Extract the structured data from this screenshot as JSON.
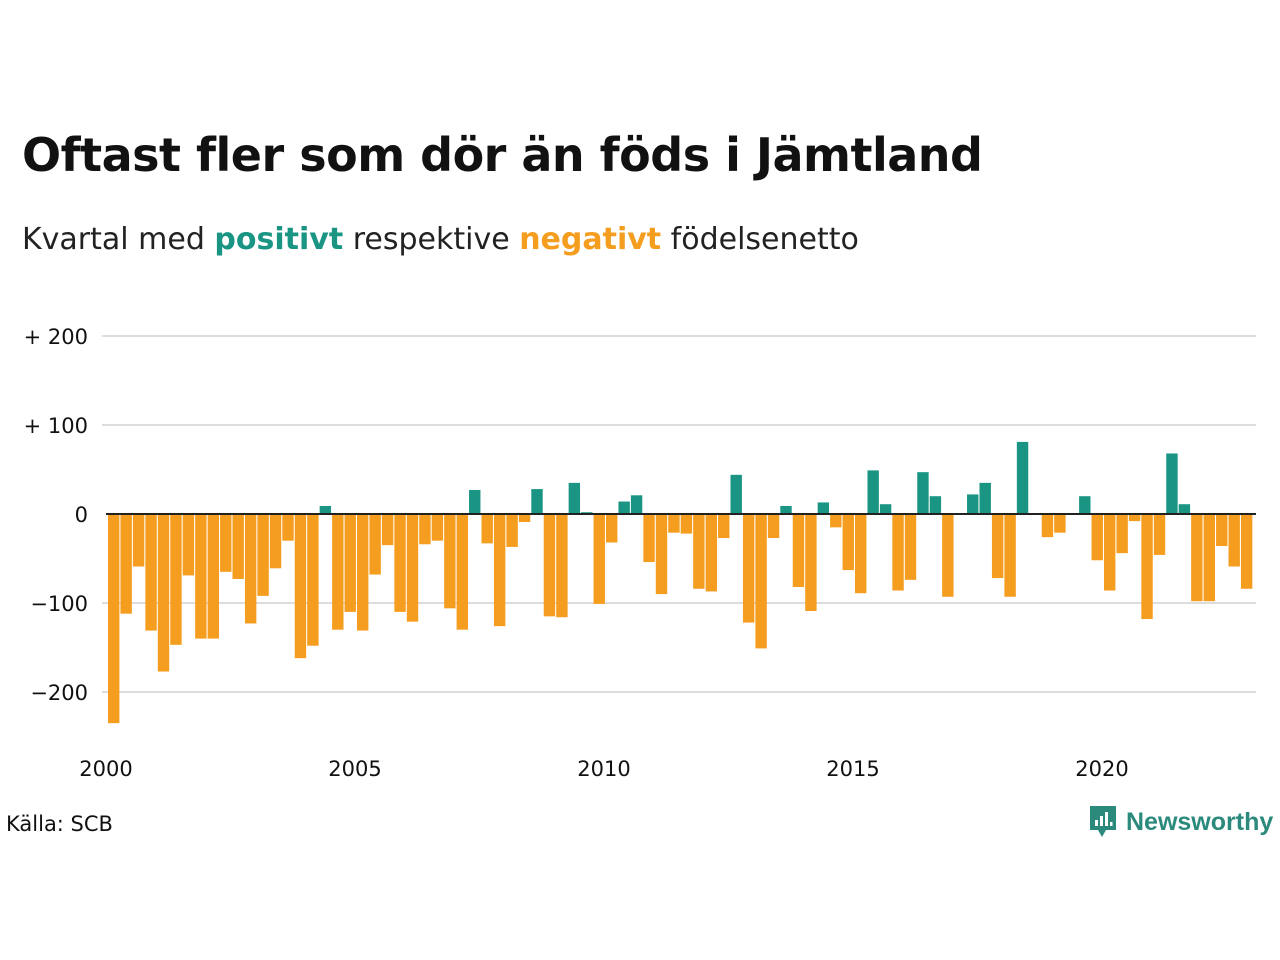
{
  "title": "Oftast fler som dör än föds i Jämtland",
  "subtitle": {
    "prefix": "Kvartal med ",
    "positive": "positivt",
    "middle": " respektive ",
    "negative": "negativt",
    "suffix": " födelsenetto"
  },
  "source": "Källa: SCB",
  "logo": {
    "text": "Newsworthy",
    "icon": "newsworthy-logo-icon"
  },
  "colors": {
    "positive": "#1a9483",
    "negative": "#f59d1e",
    "grid": "#dddddd",
    "zero": "#222222"
  },
  "chart_data": {
    "type": "bar",
    "title": "Oftast fler som dör än föds i Jämtland",
    "subtitle": "Kvartal med positivt respektive negativt födelsenetto",
    "xlabel": "",
    "ylabel": "",
    "ylim": [
      -240,
      210
    ],
    "yticks": [
      200,
      100,
      0,
      -100,
      -200
    ],
    "ytick_labels": [
      "+ 200",
      "+ 100",
      "0",
      "−100",
      "−200"
    ],
    "xticks": [
      2000,
      2005,
      2010,
      2015,
      2020
    ],
    "xtick_labels": [
      "2000",
      "2005",
      "2010",
      "2015",
      "2020"
    ],
    "grid": true,
    "legend": "none",
    "start": "2000 Q1",
    "frequency": "quarter",
    "values": [
      -235,
      -112,
      -59,
      -131,
      -177,
      -147,
      -69,
      -140,
      -140,
      -65,
      -73,
      -123,
      -92,
      -61,
      -30,
      -162,
      -148,
      9,
      -130,
      -110,
      -131,
      -68,
      -35,
      -110,
      -121,
      -34,
      -30,
      -106,
      -130,
      27,
      -33,
      -126,
      -37,
      -9,
      28,
      -115,
      -116,
      35,
      2,
      -101,
      -32,
      14,
      21,
      -54,
      -90,
      -21,
      -22,
      -84,
      -87,
      -27,
      44,
      -122,
      -151,
      -27,
      9,
      -82,
      -109,
      13,
      -15,
      -63,
      -89,
      49,
      11,
      -86,
      -74,
      47,
      20,
      -93,
      0,
      22,
      35,
      -72,
      -93,
      81,
      1,
      -26,
      -21,
      0,
      20,
      -52,
      -86,
      -44,
      -8,
      -118,
      -46,
      68,
      11,
      -98,
      -98,
      -36,
      -59,
      -84
    ]
  }
}
